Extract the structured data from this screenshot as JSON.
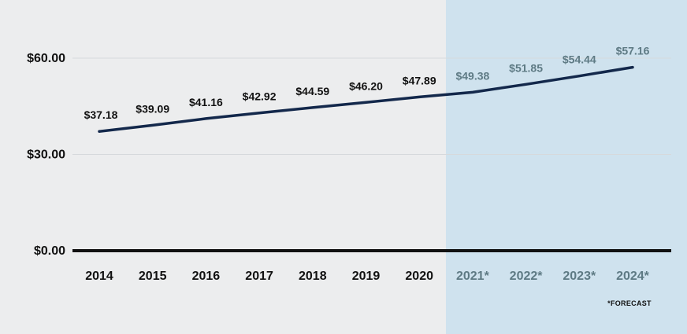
{
  "chart_data": {
    "type": "line",
    "title": "",
    "xlabel": "",
    "ylabel": "",
    "categories": [
      "2014",
      "2015",
      "2016",
      "2017",
      "2018",
      "2019",
      "2020",
      "2021*",
      "2022*",
      "2023*",
      "2024*"
    ],
    "series": [
      {
        "name": "Value",
        "values": [
          37.18,
          39.09,
          41.16,
          42.92,
          44.59,
          46.2,
          47.89,
          49.38,
          51.85,
          54.44,
          57.16
        ],
        "labels": [
          "$37.18",
          "$39.09",
          "$41.16",
          "$42.92",
          "$44.59",
          "$46.20",
          "$47.89",
          "$49.38",
          "$51.85",
          "$54.44",
          "$57.16"
        ]
      }
    ],
    "forecast_start_index": 7,
    "ylim": [
      0,
      60
    ],
    "yticks": [
      0,
      30,
      60
    ],
    "ytick_labels": [
      "$0.00",
      "$30.00",
      "$60.00"
    ],
    "grid": true,
    "footnote": "*FORECAST"
  },
  "colors": {
    "background": "#ecedee",
    "forecast_band": "#cfe2ee",
    "line": "#13284b",
    "actual_text": "#111111",
    "forecast_text": "#5e7a84",
    "grid": "#d6d9dc",
    "axis": "#111111"
  }
}
